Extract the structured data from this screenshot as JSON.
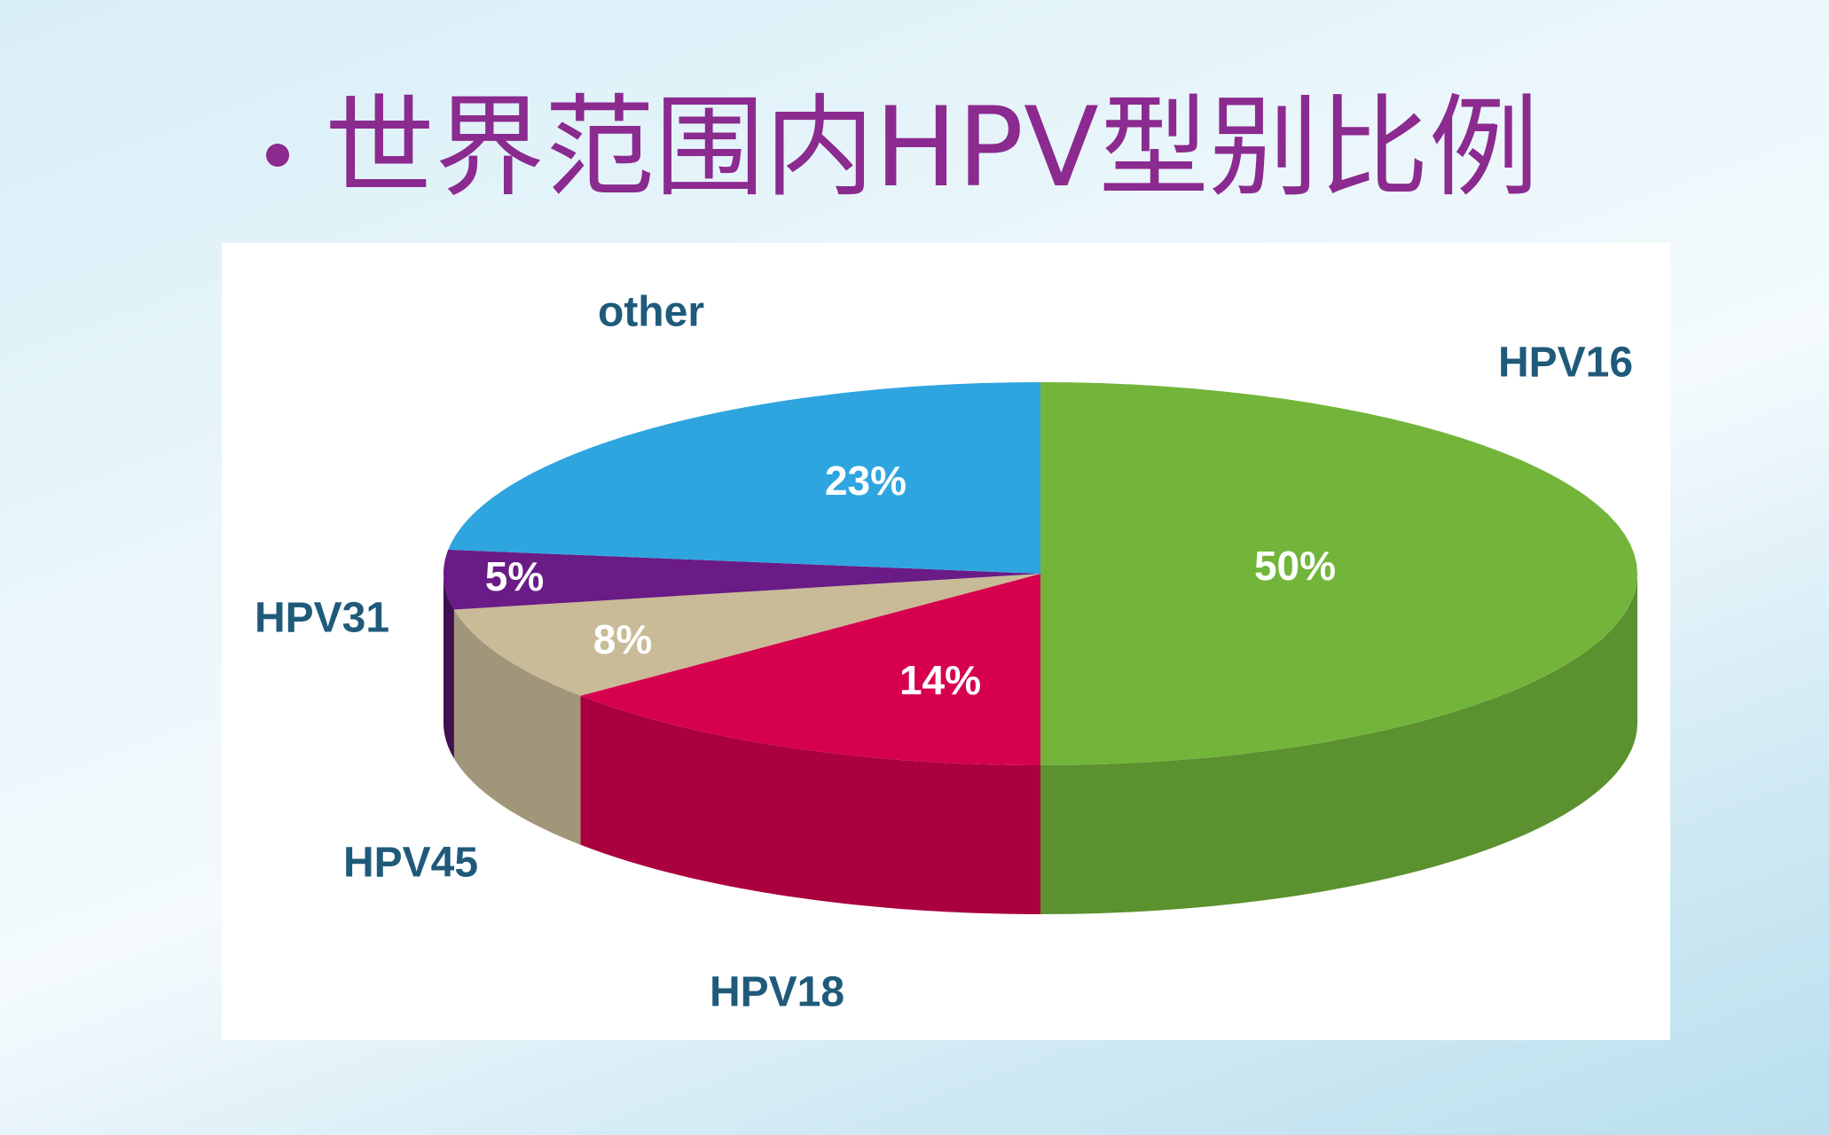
{
  "title": "世界范围内HPV型别比例",
  "chart_data": {
    "type": "pie3d",
    "categories": [
      "HPV16",
      "HPV18",
      "HPV45",
      "HPV31",
      "other"
    ],
    "values": [
      50,
      14,
      8,
      5,
      23
    ],
    "value_labels": [
      "50%",
      "14%",
      "8%",
      "5%",
      "23%"
    ],
    "colors": [
      "#72b53a",
      "#d6004e",
      "#c9bb97",
      "#6a1b86",
      "#2fa5e0"
    ]
  }
}
